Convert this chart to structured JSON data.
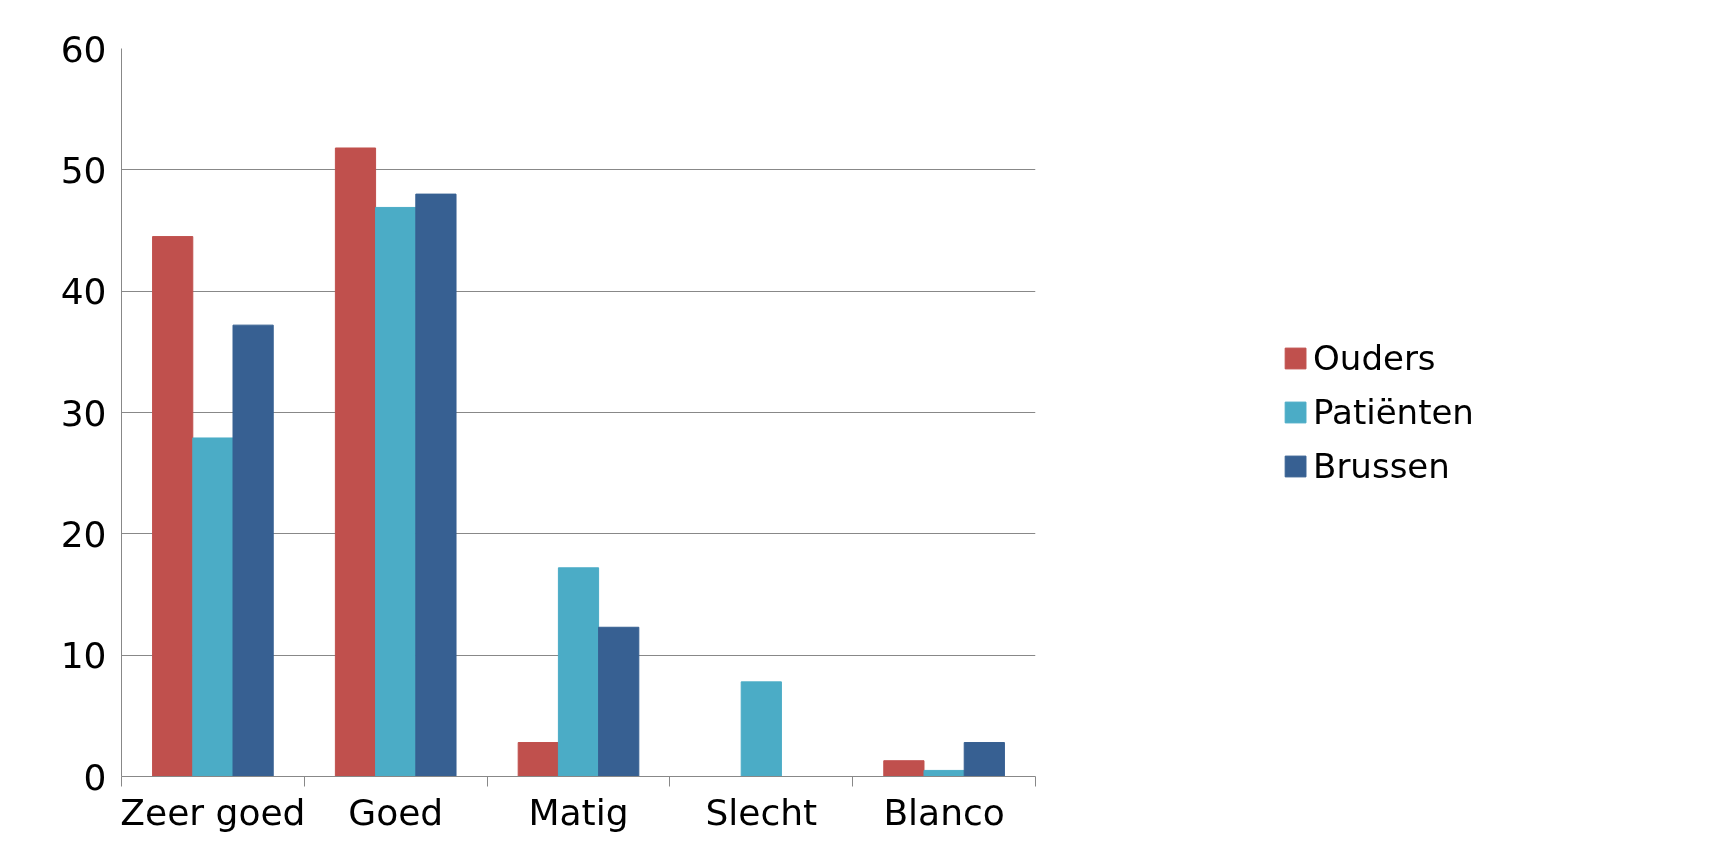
{
  "chart_data": {
    "type": "bar",
    "categories": [
      "Zeer goed",
      "Goed",
      "Matig",
      "Slecht",
      "Blanco"
    ],
    "series": [
      {
        "name": "Ouders",
        "color": "#c0504d",
        "values": [
          44.5,
          51.8,
          2.8,
          0,
          1.3
        ]
      },
      {
        "name": "Patiënten",
        "color": "#4bacc6",
        "values": [
          27.9,
          46.9,
          17.2,
          7.8,
          0.5
        ]
      },
      {
        "name": "Brussen",
        "color": "#376092",
        "values": [
          37.2,
          48.0,
          12.3,
          0,
          2.8
        ]
      }
    ],
    "ylim": [
      0,
      60
    ],
    "yticks": [
      0,
      10,
      20,
      30,
      40,
      50,
      60
    ],
    "grid": "y",
    "legend": "right"
  }
}
